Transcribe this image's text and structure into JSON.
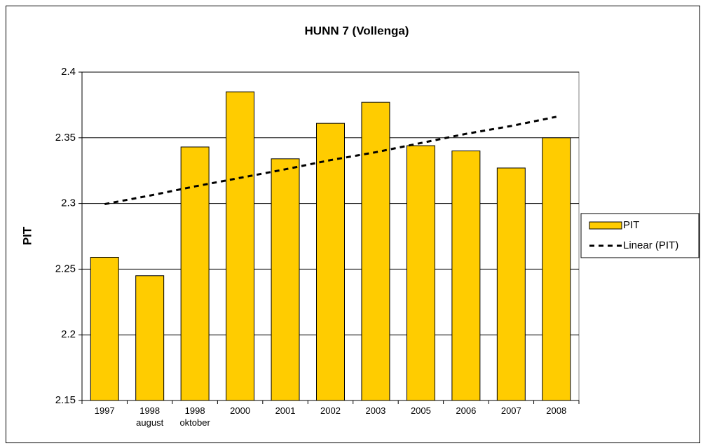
{
  "chart_data": {
    "type": "bar",
    "title": "HUNN 7 (Vollenga)",
    "y_label": "PIT",
    "categories": [
      "1997",
      "1998\naugust",
      "1998\noktober",
      "2000",
      "2001",
      "2002",
      "2003",
      "2005",
      "2006",
      "2007",
      "2008"
    ],
    "series": [
      {
        "name": "PIT",
        "type": "bar",
        "color": "#ffcc00",
        "values": [
          2.259,
          2.245,
          2.343,
          2.385,
          2.334,
          2.361,
          2.377,
          2.344,
          2.34,
          2.327,
          2.35
        ]
      },
      {
        "name": "Linear (PIT)",
        "type": "line",
        "color": "#000000",
        "dashed": true,
        "values": [
          2.2995,
          2.306,
          2.313,
          2.3195,
          2.326,
          2.333,
          2.339,
          2.346,
          2.353,
          2.359,
          2.366
        ]
      }
    ],
    "ylim": [
      2.15,
      2.4
    ],
    "yticks": [
      2.15,
      2.2,
      2.25,
      2.3,
      2.35,
      2.4
    ],
    "grid": true,
    "legend": "right"
  }
}
